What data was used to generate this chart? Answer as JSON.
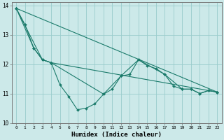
{
  "xlabel": "Humidex (Indice chaleur)",
  "bg_color": "#cce9e9",
  "grid_color": "#99cccc",
  "line_color": "#1a7a6a",
  "xlim": [
    -0.5,
    23.5
  ],
  "ylim": [
    10,
    14.1
  ],
  "yticks": [
    10,
    11,
    12,
    13,
    14
  ],
  "xticks": [
    0,
    1,
    2,
    3,
    4,
    5,
    6,
    7,
    8,
    9,
    10,
    11,
    12,
    13,
    14,
    15,
    16,
    17,
    18,
    19,
    20,
    21,
    22,
    23
  ],
  "series": [
    {
      "x": [
        0,
        1,
        2,
        3,
        4,
        5,
        6,
        7,
        8,
        9,
        10,
        11,
        12,
        13,
        14,
        15,
        16,
        17,
        18,
        19,
        20,
        21,
        22,
        23
      ],
      "y": [
        13.9,
        13.35,
        12.55,
        12.15,
        12.05,
        11.3,
        10.9,
        10.45,
        10.5,
        10.65,
        10.98,
        11.15,
        11.6,
        11.65,
        12.15,
        11.95,
        11.85,
        11.65,
        11.25,
        11.15,
        11.15,
        11.0,
        11.1,
        11.05
      ]
    },
    {
      "x": [
        0,
        2,
        3,
        4,
        23
      ],
      "y": [
        13.9,
        12.55,
        12.15,
        12.05,
        11.05
      ]
    },
    {
      "x": [
        0,
        3,
        4,
        10,
        12,
        14,
        17,
        19,
        20,
        21,
        22,
        23
      ],
      "y": [
        13.9,
        12.15,
        12.05,
        10.98,
        11.6,
        12.15,
        11.65,
        11.15,
        11.15,
        11.0,
        11.1,
        11.05
      ]
    },
    {
      "x": [
        0,
        23
      ],
      "y": [
        13.9,
        11.05
      ]
    }
  ]
}
